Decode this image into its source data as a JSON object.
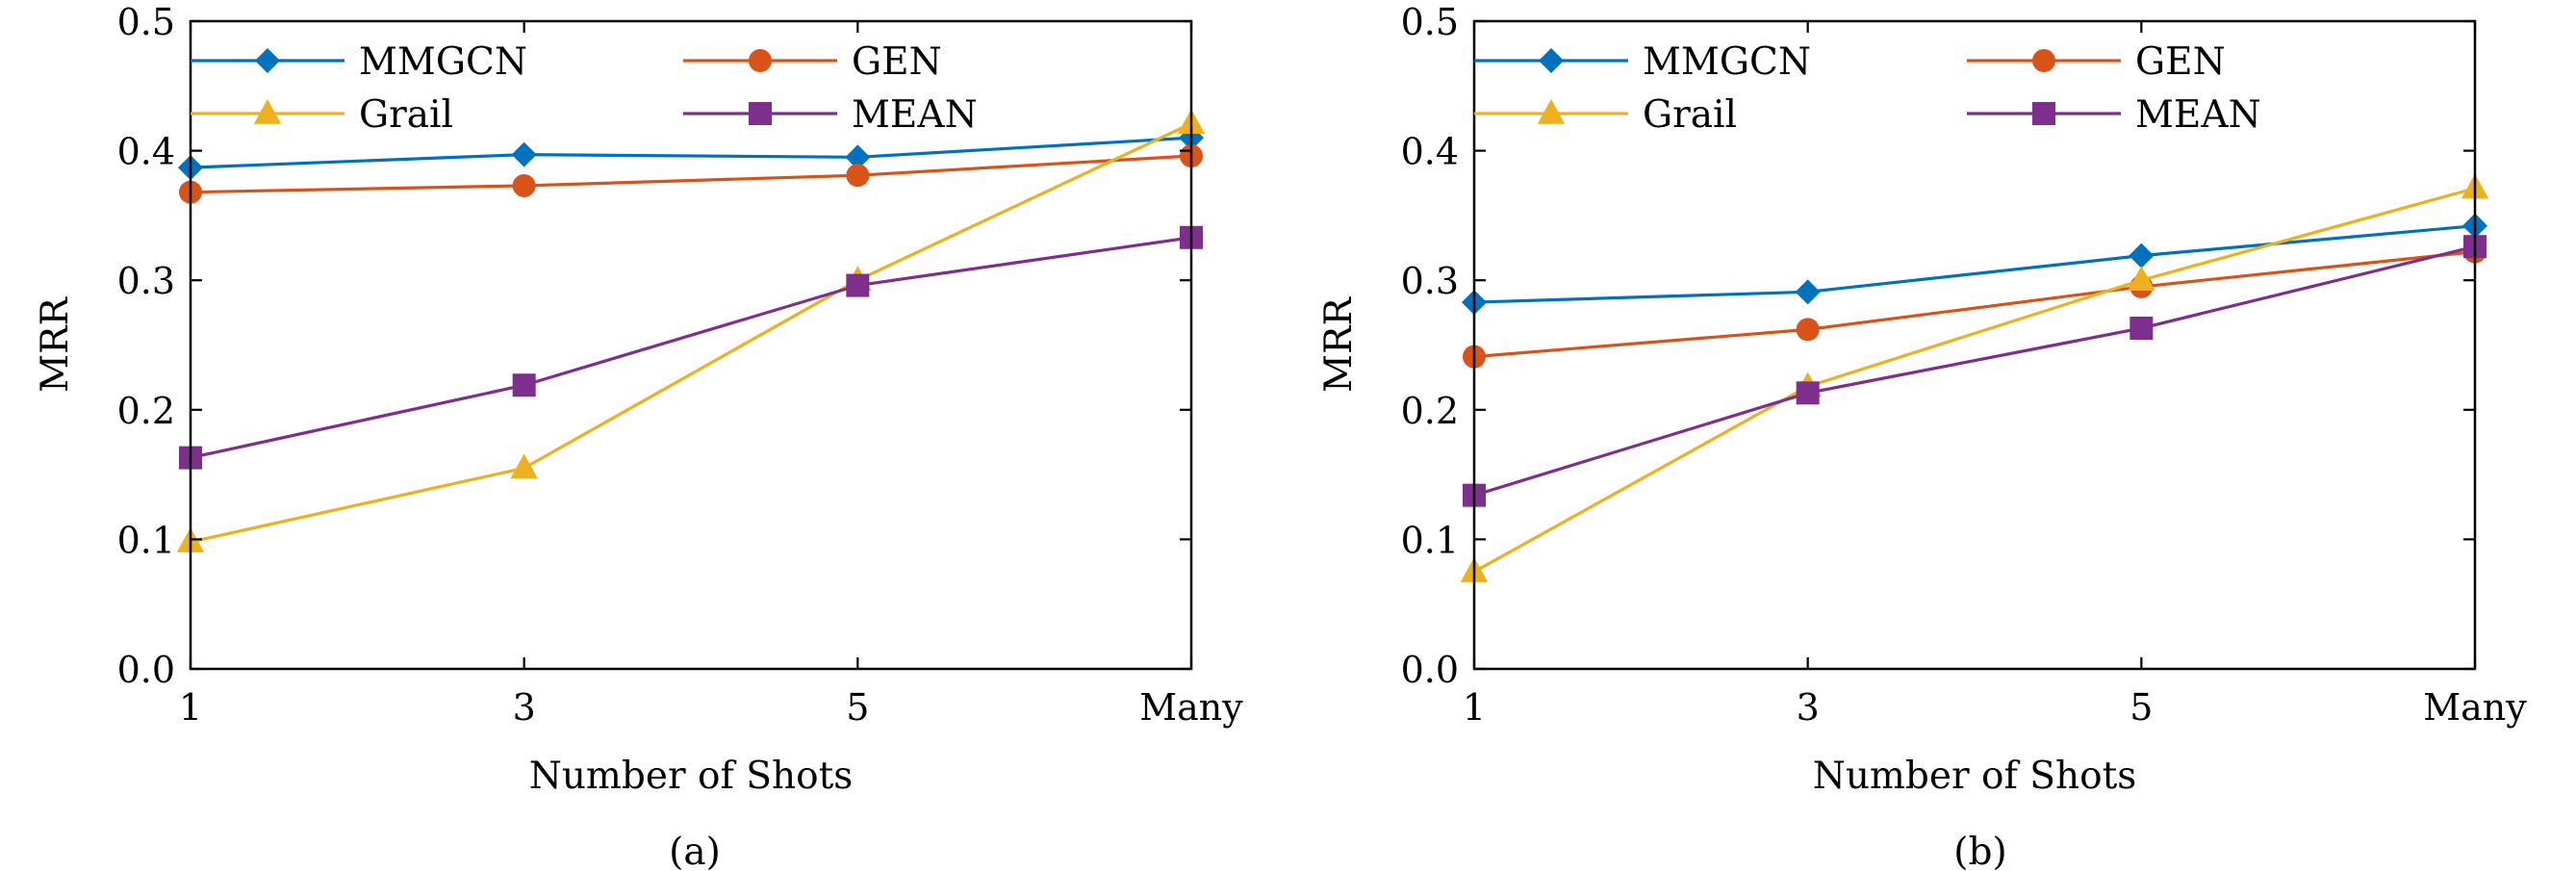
{
  "colors": {
    "MMGCN": "#0072BD",
    "GEN": "#D95319",
    "Grail": "#EDB120",
    "MEAN": "#7E2F8E"
  },
  "markers": {
    "MMGCN": "diamond",
    "GEN": "circle",
    "Grail": "triangle",
    "MEAN": "square"
  },
  "chart_data": [
    {
      "type": "line",
      "caption": "(a)",
      "xlabel": "Number of Shots",
      "ylabel": "MRR",
      "categories": [
        "1",
        "3",
        "5",
        "Many"
      ],
      "ylim": [
        0,
        0.5
      ],
      "yticks": [
        "0.0",
        "0.1",
        "0.2",
        "0.3",
        "0.4",
        "0.5"
      ],
      "grid": false,
      "legend": "top, two columns",
      "series": [
        {
          "name": "MMGCN",
          "values": [
            0.387,
            0.397,
            0.395,
            0.41
          ]
        },
        {
          "name": "GEN",
          "values": [
            0.368,
            0.373,
            0.381,
            0.396
          ]
        },
        {
          "name": "Grail",
          "values": [
            0.098,
            0.155,
            0.3,
            0.421
          ]
        },
        {
          "name": "MEAN",
          "values": [
            0.163,
            0.219,
            0.296,
            0.333
          ]
        }
      ]
    },
    {
      "type": "line",
      "caption": "(b)",
      "xlabel": "Number of Shots",
      "ylabel": "MRR",
      "categories": [
        "1",
        "3",
        "5",
        "Many"
      ],
      "ylim": [
        0,
        0.5
      ],
      "yticks": [
        "0.0",
        "0.1",
        "0.2",
        "0.3",
        "0.4",
        "0.5"
      ],
      "grid": false,
      "legend": "top, two columns",
      "series": [
        {
          "name": "MMGCN",
          "values": [
            0.283,
            0.291,
            0.319,
            0.342
          ]
        },
        {
          "name": "GEN",
          "values": [
            0.241,
            0.262,
            0.295,
            0.322
          ]
        },
        {
          "name": "Grail",
          "values": [
            0.075,
            0.218,
            0.3,
            0.371
          ]
        },
        {
          "name": "MEAN",
          "values": [
            0.134,
            0.213,
            0.263,
            0.326
          ]
        }
      ]
    }
  ]
}
